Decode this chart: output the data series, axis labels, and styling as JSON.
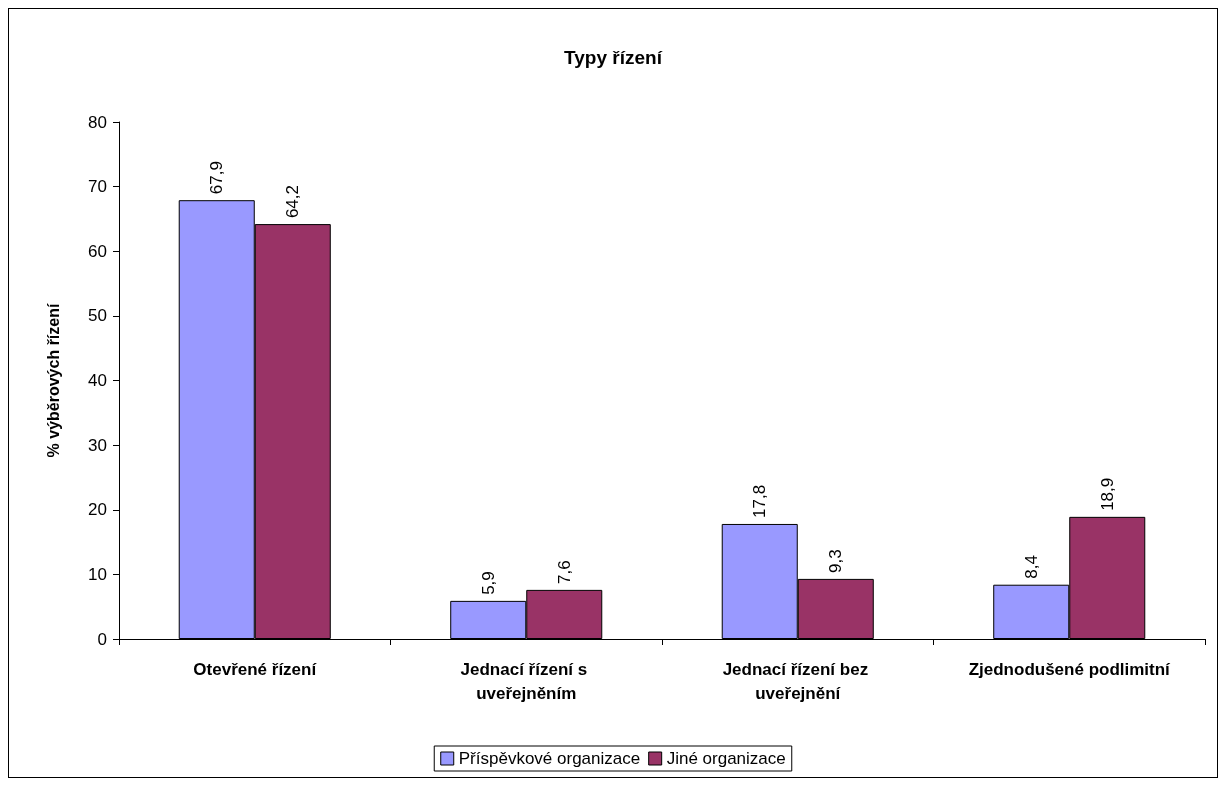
{
  "chart_data": {
    "type": "bar",
    "title": "Typy řízení",
    "ylabel": "% výběrových řízení",
    "categories": [
      "Otevřené řízení",
      "Jednací řízení s uveřejněním",
      "Jednací řízení bez uveřejnění",
      "Zjednodušené podlimitní"
    ],
    "series": [
      {
        "name": "Příspěvkové organizace",
        "color": "#9999ff",
        "values": [
          67.9,
          5.9,
          17.8,
          8.4
        ],
        "value_labels": [
          "67,9",
          "5,9",
          "17,8",
          "8,4"
        ]
      },
      {
        "name": "Jiné organizace",
        "color": "#993366",
        "values": [
          64.2,
          7.6,
          9.3,
          18.9
        ],
        "value_labels": [
          "64,2",
          "7,6",
          "9,3",
          "18,9"
        ]
      }
    ],
    "ylim": [
      0,
      80
    ],
    "yticks": [
      0,
      10,
      20,
      30,
      40,
      50,
      60,
      70,
      80
    ],
    "grid": false,
    "legend": "bottom"
  }
}
